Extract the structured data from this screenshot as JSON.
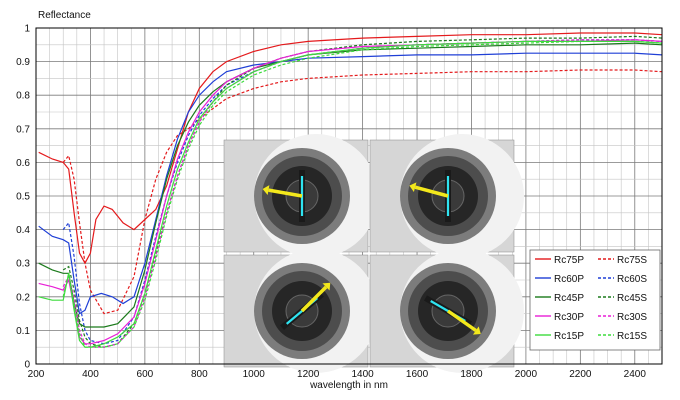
{
  "chart_data": {
    "type": "line",
    "ylabel": "Reflectance",
    "xlabel": "wavelength in nm",
    "xlim": [
      200,
      2500
    ],
    "ylim": [
      0,
      1
    ],
    "x_ticks": [
      200,
      400,
      600,
      800,
      1000,
      1200,
      1400,
      1600,
      1800,
      2000,
      2200,
      2400
    ],
    "y_ticks": [
      0,
      0.1,
      0.2,
      0.3,
      0.4,
      0.5,
      0.6,
      0.7,
      0.8,
      0.9,
      1
    ],
    "grid": true,
    "legend_placement": "lower-right",
    "inset_images": [
      {
        "icon": "sample-holder-photo",
        "arrow_color": "#f3e81c",
        "arrow_direction": "left"
      },
      {
        "icon": "sample-holder-photo",
        "arrow_color": "#f3e81c",
        "arrow_direction": "left"
      },
      {
        "icon": "sample-holder-photo",
        "arrow_color": "#f3e81c",
        "arrow_direction": "up-right"
      },
      {
        "icon": "sample-holder-photo",
        "arrow_color": "#f3e81c",
        "arrow_direction": "down-right"
      }
    ],
    "series": [
      {
        "name": "Rc75P",
        "color": "#e41a1c",
        "dash": "solid",
        "points": [
          [
            210,
            0.63
          ],
          [
            260,
            0.61
          ],
          [
            300,
            0.6
          ],
          [
            320,
            0.58
          ],
          [
            340,
            0.45
          ],
          [
            360,
            0.33
          ],
          [
            380,
            0.3
          ],
          [
            400,
            0.33
          ],
          [
            420,
            0.43
          ],
          [
            450,
            0.47
          ],
          [
            480,
            0.46
          ],
          [
            520,
            0.42
          ],
          [
            560,
            0.4
          ],
          [
            600,
            0.43
          ],
          [
            640,
            0.46
          ],
          [
            680,
            0.53
          ],
          [
            720,
            0.64
          ],
          [
            760,
            0.75
          ],
          [
            800,
            0.82
          ],
          [
            850,
            0.87
          ],
          [
            900,
            0.9
          ],
          [
            1000,
            0.93
          ],
          [
            1100,
            0.95
          ],
          [
            1200,
            0.96
          ],
          [
            1400,
            0.97
          ],
          [
            1600,
            0.975
          ],
          [
            1800,
            0.98
          ],
          [
            2000,
            0.98
          ],
          [
            2200,
            0.985
          ],
          [
            2400,
            0.985
          ],
          [
            2500,
            0.98
          ]
        ]
      },
      {
        "name": "Rc75S",
        "color": "#e41a1c",
        "dash": "dashed",
        "points": [
          [
            300,
            0.6
          ],
          [
            320,
            0.62
          ],
          [
            340,
            0.55
          ],
          [
            360,
            0.42
          ],
          [
            380,
            0.3
          ],
          [
            400,
            0.22
          ],
          [
            450,
            0.15
          ],
          [
            500,
            0.16
          ],
          [
            560,
            0.26
          ],
          [
            600,
            0.43
          ],
          [
            640,
            0.55
          ],
          [
            680,
            0.63
          ],
          [
            720,
            0.68
          ],
          [
            760,
            0.7
          ],
          [
            800,
            0.73
          ],
          [
            850,
            0.76
          ],
          [
            900,
            0.79
          ],
          [
            1000,
            0.82
          ],
          [
            1100,
            0.84
          ],
          [
            1200,
            0.85
          ],
          [
            1400,
            0.86
          ],
          [
            1600,
            0.865
          ],
          [
            1800,
            0.87
          ],
          [
            2000,
            0.87
          ],
          [
            2200,
            0.875
          ],
          [
            2400,
            0.875
          ],
          [
            2500,
            0.87
          ]
        ]
      },
      {
        "name": "Rc60P",
        "color": "#1f3fd6",
        "dash": "solid",
        "points": [
          [
            210,
            0.41
          ],
          [
            260,
            0.38
          ],
          [
            300,
            0.37
          ],
          [
            320,
            0.36
          ],
          [
            340,
            0.25
          ],
          [
            360,
            0.15
          ],
          [
            380,
            0.16
          ],
          [
            400,
            0.2
          ],
          [
            440,
            0.21
          ],
          [
            480,
            0.2
          ],
          [
            520,
            0.18
          ],
          [
            560,
            0.2
          ],
          [
            600,
            0.3
          ],
          [
            640,
            0.43
          ],
          [
            680,
            0.56
          ],
          [
            720,
            0.67
          ],
          [
            760,
            0.75
          ],
          [
            800,
            0.8
          ],
          [
            850,
            0.84
          ],
          [
            900,
            0.87
          ],
          [
            1000,
            0.89
          ],
          [
            1100,
            0.9
          ],
          [
            1200,
            0.91
          ],
          [
            1400,
            0.915
          ],
          [
            1600,
            0.92
          ],
          [
            1800,
            0.92
          ],
          [
            2000,
            0.925
          ],
          [
            2200,
            0.925
          ],
          [
            2400,
            0.925
          ],
          [
            2500,
            0.92
          ]
        ]
      },
      {
        "name": "Rc60S",
        "color": "#1f3fd6",
        "dash": "dashed",
        "points": [
          [
            300,
            0.4
          ],
          [
            320,
            0.42
          ],
          [
            340,
            0.32
          ],
          [
            360,
            0.18
          ],
          [
            380,
            0.1
          ],
          [
            400,
            0.07
          ],
          [
            450,
            0.06
          ],
          [
            500,
            0.07
          ],
          [
            560,
            0.14
          ],
          [
            600,
            0.25
          ],
          [
            640,
            0.38
          ],
          [
            680,
            0.5
          ],
          [
            720,
            0.6
          ],
          [
            760,
            0.68
          ],
          [
            800,
            0.74
          ],
          [
            850,
            0.79
          ],
          [
            900,
            0.83
          ],
          [
            1000,
            0.87
          ],
          [
            1100,
            0.9
          ],
          [
            1200,
            0.92
          ],
          [
            1400,
            0.94
          ],
          [
            1600,
            0.95
          ],
          [
            1800,
            0.955
          ],
          [
            2000,
            0.96
          ],
          [
            2200,
            0.965
          ],
          [
            2400,
            0.965
          ],
          [
            2500,
            0.96
          ]
        ]
      },
      {
        "name": "Rc45P",
        "color": "#1b7a1b",
        "dash": "solid",
        "points": [
          [
            210,
            0.3
          ],
          [
            260,
            0.28
          ],
          [
            300,
            0.27
          ],
          [
            320,
            0.27
          ],
          [
            340,
            0.18
          ],
          [
            360,
            0.12
          ],
          [
            380,
            0.11
          ],
          [
            400,
            0.11
          ],
          [
            450,
            0.11
          ],
          [
            500,
            0.12
          ],
          [
            560,
            0.17
          ],
          [
            600,
            0.28
          ],
          [
            640,
            0.42
          ],
          [
            680,
            0.55
          ],
          [
            720,
            0.65
          ],
          [
            760,
            0.72
          ],
          [
            800,
            0.77
          ],
          [
            850,
            0.81
          ],
          [
            900,
            0.84
          ],
          [
            1000,
            0.88
          ],
          [
            1100,
            0.9
          ],
          [
            1200,
            0.92
          ],
          [
            1400,
            0.935
          ],
          [
            1600,
            0.94
          ],
          [
            1800,
            0.945
          ],
          [
            2000,
            0.95
          ],
          [
            2200,
            0.95
          ],
          [
            2400,
            0.955
          ],
          [
            2500,
            0.95
          ]
        ]
      },
      {
        "name": "Rc45S",
        "color": "#1b7a1b",
        "dash": "dashed",
        "points": [
          [
            300,
            0.28
          ],
          [
            320,
            0.29
          ],
          [
            340,
            0.22
          ],
          [
            360,
            0.13
          ],
          [
            380,
            0.08
          ],
          [
            400,
            0.06
          ],
          [
            450,
            0.05
          ],
          [
            500,
            0.06
          ],
          [
            560,
            0.12
          ],
          [
            600,
            0.21
          ],
          [
            640,
            0.33
          ],
          [
            680,
            0.45
          ],
          [
            720,
            0.56
          ],
          [
            760,
            0.65
          ],
          [
            800,
            0.72
          ],
          [
            850,
            0.78
          ],
          [
            900,
            0.83
          ],
          [
            1000,
            0.88
          ],
          [
            1100,
            0.91
          ],
          [
            1200,
            0.93
          ],
          [
            1400,
            0.95
          ],
          [
            1600,
            0.96
          ],
          [
            1800,
            0.965
          ],
          [
            2000,
            0.97
          ],
          [
            2200,
            0.97
          ],
          [
            2400,
            0.975
          ],
          [
            2500,
            0.97
          ]
        ]
      },
      {
        "name": "Rc30P",
        "color": "#e81fd6",
        "dash": "solid",
        "points": [
          [
            210,
            0.24
          ],
          [
            260,
            0.23
          ],
          [
            300,
            0.22
          ],
          [
            320,
            0.25
          ],
          [
            340,
            0.17
          ],
          [
            360,
            0.08
          ],
          [
            380,
            0.06
          ],
          [
            400,
            0.06
          ],
          [
            450,
            0.07
          ],
          [
            500,
            0.09
          ],
          [
            560,
            0.14
          ],
          [
            600,
            0.24
          ],
          [
            640,
            0.37
          ],
          [
            680,
            0.5
          ],
          [
            720,
            0.61
          ],
          [
            760,
            0.69
          ],
          [
            800,
            0.75
          ],
          [
            850,
            0.8
          ],
          [
            900,
            0.84
          ],
          [
            1000,
            0.88
          ],
          [
            1100,
            0.91
          ],
          [
            1200,
            0.93
          ],
          [
            1400,
            0.945
          ],
          [
            1600,
            0.95
          ],
          [
            1800,
            0.955
          ],
          [
            2000,
            0.96
          ],
          [
            2200,
            0.96
          ],
          [
            2400,
            0.965
          ],
          [
            2500,
            0.96
          ]
        ]
      },
      {
        "name": "Rc30S",
        "color": "#e81fd6",
        "dash": "dashed",
        "points": [
          [
            300,
            0.23
          ],
          [
            320,
            0.26
          ],
          [
            340,
            0.2
          ],
          [
            360,
            0.1
          ],
          [
            380,
            0.06
          ],
          [
            400,
            0.05
          ],
          [
            450,
            0.05
          ],
          [
            500,
            0.06
          ],
          [
            560,
            0.11
          ],
          [
            600,
            0.2
          ],
          [
            640,
            0.32
          ],
          [
            680,
            0.45
          ],
          [
            720,
            0.56
          ],
          [
            760,
            0.65
          ],
          [
            800,
            0.72
          ],
          [
            850,
            0.78
          ],
          [
            900,
            0.82
          ],
          [
            1000,
            0.87
          ],
          [
            1100,
            0.9
          ],
          [
            1200,
            0.92
          ],
          [
            1400,
            0.94
          ],
          [
            1600,
            0.95
          ],
          [
            1800,
            0.955
          ],
          [
            2000,
            0.96
          ],
          [
            2200,
            0.965
          ],
          [
            2400,
            0.965
          ],
          [
            2500,
            0.96
          ]
        ]
      },
      {
        "name": "Rc15P",
        "color": "#3ddc3d",
        "dash": "solid",
        "points": [
          [
            210,
            0.2
          ],
          [
            260,
            0.19
          ],
          [
            300,
            0.19
          ],
          [
            320,
            0.27
          ],
          [
            340,
            0.16
          ],
          [
            360,
            0.07
          ],
          [
            380,
            0.05
          ],
          [
            400,
            0.05
          ],
          [
            450,
            0.06
          ],
          [
            500,
            0.08
          ],
          [
            560,
            0.12
          ],
          [
            600,
            0.21
          ],
          [
            640,
            0.34
          ],
          [
            680,
            0.47
          ],
          [
            720,
            0.58
          ],
          [
            760,
            0.66
          ],
          [
            800,
            0.73
          ],
          [
            850,
            0.78
          ],
          [
            900,
            0.82
          ],
          [
            1000,
            0.87
          ],
          [
            1100,
            0.9
          ],
          [
            1200,
            0.92
          ],
          [
            1400,
            0.94
          ],
          [
            1600,
            0.95
          ],
          [
            1800,
            0.955
          ],
          [
            2000,
            0.96
          ],
          [
            2200,
            0.96
          ],
          [
            2400,
            0.96
          ],
          [
            2500,
            0.955
          ]
        ]
      },
      {
        "name": "Rc15S",
        "color": "#3ddc3d",
        "dash": "dashed",
        "points": [
          [
            300,
            0.2
          ],
          [
            320,
            0.27
          ],
          [
            340,
            0.18
          ],
          [
            360,
            0.09
          ],
          [
            380,
            0.05
          ],
          [
            400,
            0.05
          ],
          [
            450,
            0.05
          ],
          [
            500,
            0.06
          ],
          [
            560,
            0.11
          ],
          [
            600,
            0.19
          ],
          [
            640,
            0.31
          ],
          [
            680,
            0.44
          ],
          [
            720,
            0.55
          ],
          [
            760,
            0.64
          ],
          [
            800,
            0.71
          ],
          [
            850,
            0.77
          ],
          [
            900,
            0.81
          ],
          [
            1000,
            0.86
          ],
          [
            1100,
            0.89
          ],
          [
            1200,
            0.91
          ],
          [
            1400,
            0.935
          ],
          [
            1600,
            0.945
          ],
          [
            1800,
            0.95
          ],
          [
            2000,
            0.955
          ],
          [
            2200,
            0.96
          ],
          [
            2400,
            0.96
          ],
          [
            2500,
            0.955
          ]
        ]
      }
    ]
  }
}
